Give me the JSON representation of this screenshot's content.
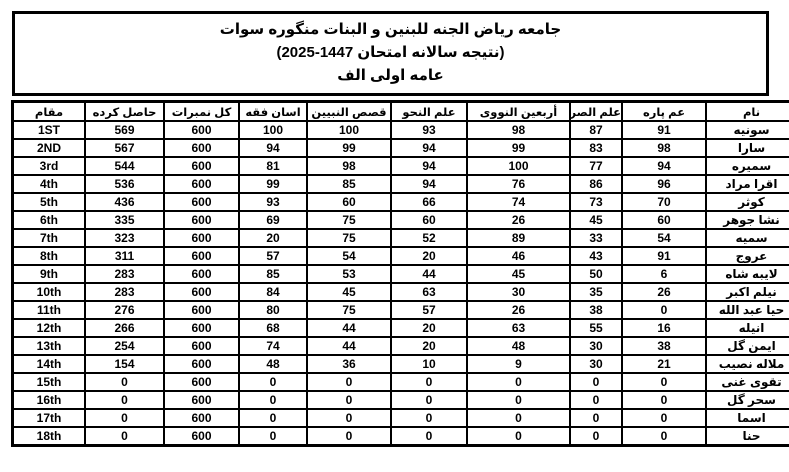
{
  "page": {
    "background": "#ffffff",
    "text_color": "#000000",
    "border_color": "#000000"
  },
  "header_box": {
    "line1": "جامعه رياض الجنه للبنين و البنات منگوره سوات",
    "line2": "(نتيجه سالانه امتحان 1447-2025)",
    "line3": "عامه اولى الف"
  },
  "table": {
    "columns": [
      {
        "key": "name",
        "label": "نام"
      },
      {
        "key": "am_para",
        "label": "عم پاره"
      },
      {
        "key": "sarf",
        "label": "علم الصرف"
      },
      {
        "key": "arbaeen",
        "label": "أربعين النووى"
      },
      {
        "key": "nahw",
        "label": "علم النحو"
      },
      {
        "key": "qasas",
        "label": "قصص النبيين"
      },
      {
        "key": "fiqh",
        "label": "اسان فقه"
      },
      {
        "key": "total",
        "label": "كل نمبرات"
      },
      {
        "key": "obtained",
        "label": "حاصل كرده"
      },
      {
        "key": "rank",
        "label": "مقام"
      }
    ],
    "rows": [
      {
        "name": "سونيه",
        "am_para": 91,
        "sarf": 87,
        "arbaeen": 98,
        "nahw": 93,
        "qasas": 100,
        "fiqh": 100,
        "total": 600,
        "obtained": 569,
        "rank": "1ST"
      },
      {
        "name": "سارا",
        "am_para": 98,
        "sarf": 83,
        "arbaeen": 99,
        "nahw": 94,
        "qasas": 99,
        "fiqh": 94,
        "total": 600,
        "obtained": 567,
        "rank": "2ND"
      },
      {
        "name": "سميره",
        "am_para": 94,
        "sarf": 77,
        "arbaeen": 100,
        "nahw": 94,
        "qasas": 98,
        "fiqh": 81,
        "total": 600,
        "obtained": 544,
        "rank": "3rd"
      },
      {
        "name": "اقرا مراد",
        "am_para": 96,
        "sarf": 86,
        "arbaeen": 76,
        "nahw": 94,
        "qasas": 85,
        "fiqh": 99,
        "total": 600,
        "obtained": 536,
        "rank": "4th"
      },
      {
        "name": "كوثر",
        "am_para": 70,
        "sarf": 73,
        "arbaeen": 74,
        "nahw": 66,
        "qasas": 60,
        "fiqh": 93,
        "total": 600,
        "obtained": 436,
        "rank": "5th"
      },
      {
        "name": "نشا جوهر",
        "am_para": 60,
        "sarf": 45,
        "arbaeen": 26,
        "nahw": 60,
        "qasas": 75,
        "fiqh": 69,
        "total": 600,
        "obtained": 335,
        "rank": "6th"
      },
      {
        "name": "سميه",
        "am_para": 54,
        "sarf": 33,
        "arbaeen": 89,
        "nahw": 52,
        "qasas": 75,
        "fiqh": 20,
        "total": 600,
        "obtained": 323,
        "rank": "7th"
      },
      {
        "name": "عروج",
        "am_para": 91,
        "sarf": 43,
        "arbaeen": 46,
        "nahw": 20,
        "qasas": 54,
        "fiqh": 57,
        "total": 600,
        "obtained": 311,
        "rank": "8th"
      },
      {
        "name": "لايبه شاه",
        "am_para": 6,
        "sarf": 50,
        "arbaeen": 45,
        "nahw": 44,
        "qasas": 53,
        "fiqh": 85,
        "total": 600,
        "obtained": 283,
        "rank": "9th"
      },
      {
        "name": "نيلم اكبر",
        "am_para": 26,
        "sarf": 35,
        "arbaeen": 30,
        "nahw": 63,
        "qasas": 45,
        "fiqh": 84,
        "total": 600,
        "obtained": 283,
        "rank": "10th"
      },
      {
        "name": "حيا عبد الله",
        "am_para": 0,
        "sarf": 38,
        "arbaeen": 26,
        "nahw": 57,
        "qasas": 75,
        "fiqh": 80,
        "total": 600,
        "obtained": 276,
        "rank": "11th"
      },
      {
        "name": "انيله",
        "am_para": 16,
        "sarf": 55,
        "arbaeen": 63,
        "nahw": 20,
        "qasas": 44,
        "fiqh": 68,
        "total": 600,
        "obtained": 266,
        "rank": "12th"
      },
      {
        "name": "ايمن گل",
        "am_para": 38,
        "sarf": 30,
        "arbaeen": 48,
        "nahw": 20,
        "qasas": 44,
        "fiqh": 74,
        "total": 600,
        "obtained": 254,
        "rank": "13th"
      },
      {
        "name": "ملاله نصيب",
        "am_para": 21,
        "sarf": 30,
        "arbaeen": 9,
        "nahw": 10,
        "qasas": 36,
        "fiqh": 48,
        "total": 600,
        "obtained": 154,
        "rank": "14th"
      },
      {
        "name": "تقوى غنى",
        "am_para": 0,
        "sarf": 0,
        "arbaeen": 0,
        "nahw": 0,
        "qasas": 0,
        "fiqh": 0,
        "total": 600,
        "obtained": 0,
        "rank": "15th"
      },
      {
        "name": "سحر گل",
        "am_para": 0,
        "sarf": 0,
        "arbaeen": 0,
        "nahw": 0,
        "qasas": 0,
        "fiqh": 0,
        "total": 600,
        "obtained": 0,
        "rank": "16th"
      },
      {
        "name": "اسما",
        "am_para": 0,
        "sarf": 0,
        "arbaeen": 0,
        "nahw": 0,
        "qasas": 0,
        "fiqh": 0,
        "total": 600,
        "obtained": 0,
        "rank": "17th"
      },
      {
        "name": "حنا",
        "am_para": 0,
        "sarf": 0,
        "arbaeen": 0,
        "nahw": 0,
        "qasas": 0,
        "fiqh": 0,
        "total": 600,
        "obtained": 0,
        "rank": "18th"
      }
    ]
  }
}
